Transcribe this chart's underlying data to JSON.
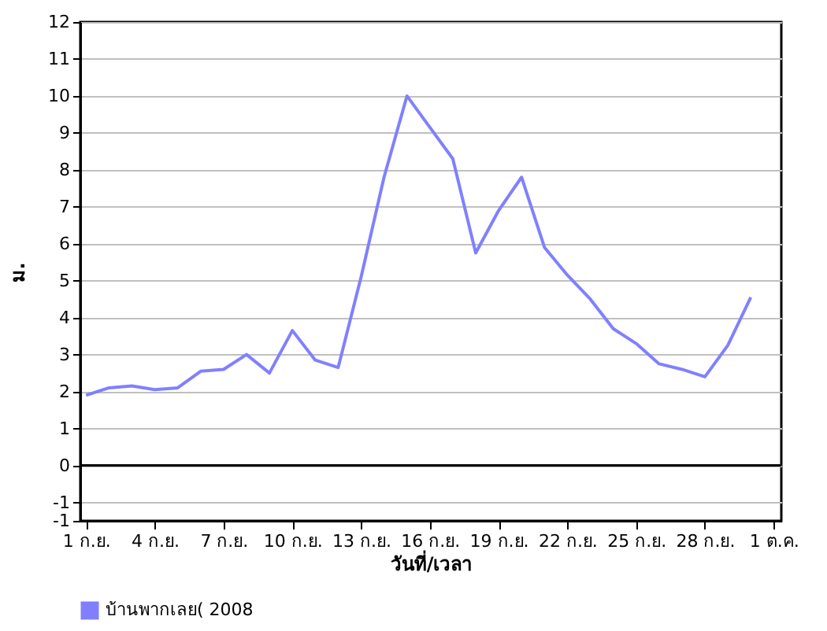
{
  "chart_data": {
    "type": "line",
    "xlabel": "วันที่/เวลา",
    "ylabel": "ม.",
    "x": [
      "2008-09-01",
      "2008-09-02",
      "2008-09-03",
      "2008-09-04",
      "2008-09-05",
      "2008-09-06",
      "2008-09-07",
      "2008-09-08",
      "2008-09-09",
      "2008-09-10",
      "2008-09-11",
      "2008-09-12",
      "2008-09-13",
      "2008-09-14",
      "2008-09-15",
      "2008-09-16",
      "2008-09-17",
      "2008-09-18",
      "2008-09-19",
      "2008-09-20",
      "2008-09-21",
      "2008-09-22",
      "2008-09-23",
      "2008-09-24",
      "2008-09-25",
      "2008-09-26",
      "2008-09-27",
      "2008-09-28",
      "2008-09-29",
      "2008-09-30"
    ],
    "series": [
      {
        "name": "บ้านพากเลย( 2008",
        "color": "#8080ff",
        "values": [
          1.9,
          2.1,
          2.15,
          2.05,
          2.1,
          2.55,
          2.6,
          3.0,
          2.5,
          3.65,
          2.85,
          2.65,
          5.1,
          7.8,
          10.0,
          9.15,
          8.3,
          5.75,
          6.9,
          7.8,
          5.9,
          5.15,
          4.5,
          3.7,
          3.3,
          2.75,
          2.6,
          2.4,
          3.25,
          4.55
        ]
      }
    ],
    "xlim": [
      "2008-08-31T18:00",
      "2008-10-01T08:00"
    ],
    "xticks": [
      {
        "value": "2008-09-01",
        "label": "1 ก.ย."
      },
      {
        "value": "2008-09-04",
        "label": "4 ก.ย."
      },
      {
        "value": "2008-09-07",
        "label": "7 ก.ย."
      },
      {
        "value": "2008-09-10",
        "label": "10 ก.ย."
      },
      {
        "value": "2008-09-13",
        "label": "13 ก.ย."
      },
      {
        "value": "2008-09-16",
        "label": "16 ก.ย."
      },
      {
        "value": "2008-09-19",
        "label": "19 ก.ย."
      },
      {
        "value": "2008-09-22",
        "label": "22 ก.ย."
      },
      {
        "value": "2008-09-25",
        "label": "25 ก.ย."
      },
      {
        "value": "2008-09-28",
        "label": "28 ก.ย."
      },
      {
        "value": "2008-10-01",
        "label": "1 ต.ค."
      }
    ],
    "ylim": [
      -1.5,
      12
    ],
    "yticks": [
      {
        "value": -1.5,
        "label": "-1"
      },
      -1,
      0,
      1,
      2,
      3,
      4,
      5,
      6,
      7,
      8,
      9,
      10,
      11,
      12
    ],
    "ref_lines": [
      {
        "axis": "y",
        "value": 0,
        "color": "#000000"
      }
    ],
    "grid": "y",
    "legend": "bottom",
    "marker": "none",
    "line_style": "solid"
  }
}
